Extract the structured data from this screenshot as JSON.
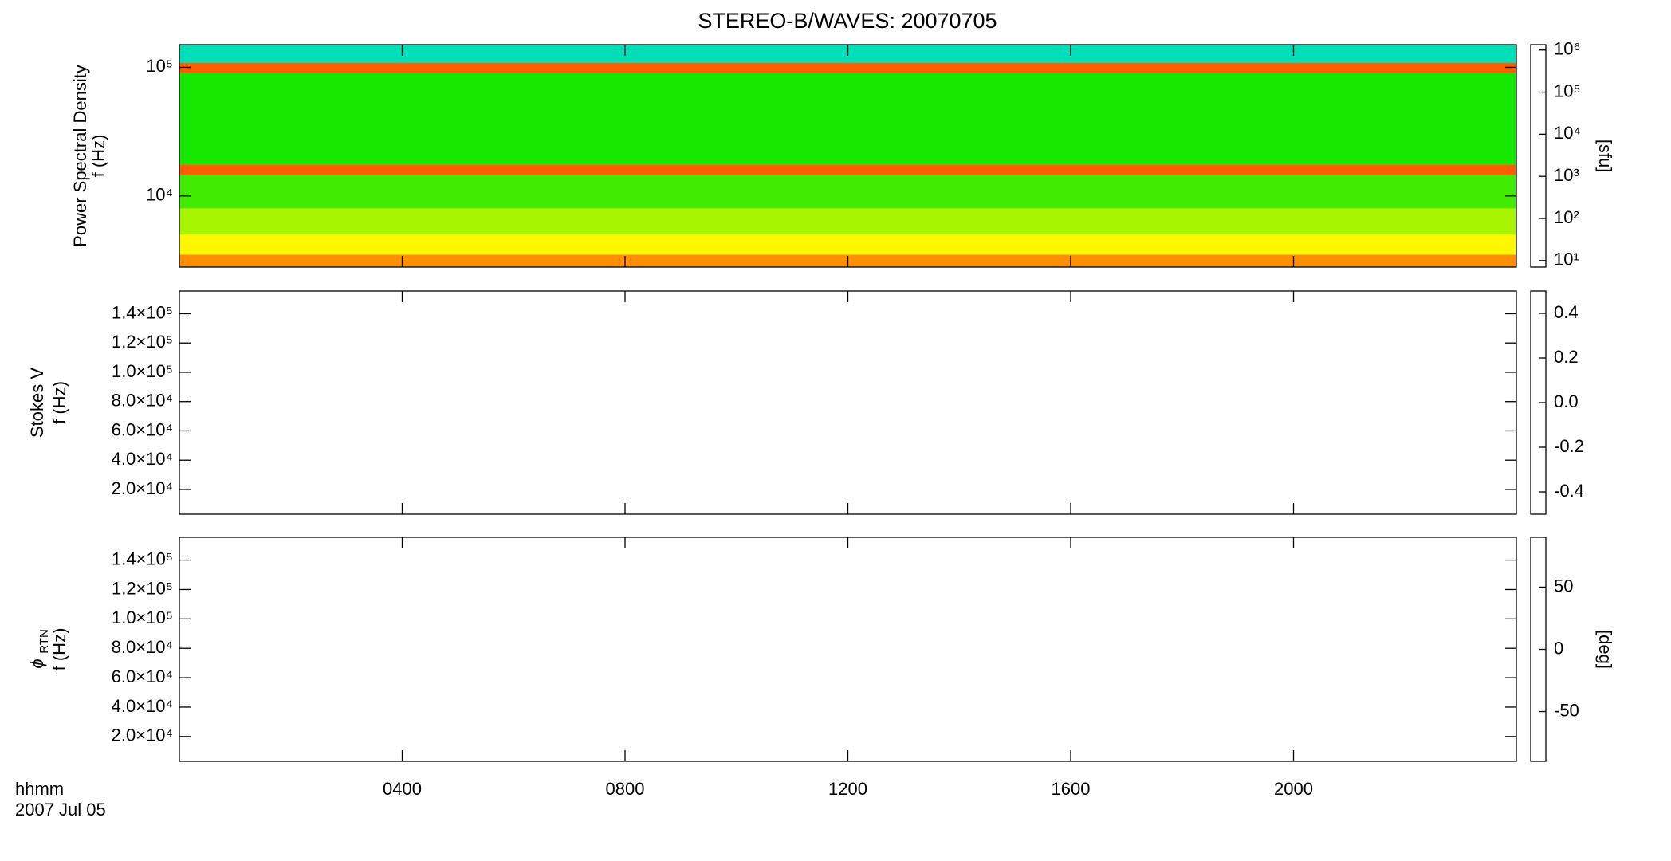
{
  "chart_data": [
    {
      "type": "spectrogram",
      "title": "STEREO-B/WAVES: 20070705",
      "ylabel": [
        "Power Spectral Density",
        "f (Hz)"
      ],
      "ylog": true,
      "ylim": [
        2800,
        150000
      ],
      "yticks": [
        {
          "value": 10000,
          "label": "10⁴"
        },
        {
          "value": 100000,
          "label": "10⁵"
        }
      ],
      "xlim": [
        0,
        24
      ],
      "zlog": true,
      "zlim": [
        7,
        1340000
      ],
      "zticks": [
        {
          "value": 10,
          "label": "10¹"
        },
        {
          "value": 100,
          "label": "10²"
        },
        {
          "value": 1000,
          "label": "10³"
        },
        {
          "value": 10000,
          "label": "10⁴"
        },
        {
          "value": 100000,
          "label": "10⁵"
        },
        {
          "value": 1000000,
          "label": "10⁶"
        }
      ],
      "zlabel": "[sfu]",
      "bands": [
        {
          "f": [
            2800,
            3500
          ],
          "value": 300000
        },
        {
          "f": [
            3500,
            5000
          ],
          "value": 100000
        },
        {
          "f": [
            5000,
            8000
          ],
          "value": 40000
        },
        {
          "f": [
            8000,
            14500
          ],
          "value": 15000
        },
        {
          "f": [
            14500,
            17500
          ],
          "value": 500000
        },
        {
          "f": [
            17500,
            90000
          ],
          "value": 10000
        },
        {
          "f": [
            90000,
            108000
          ],
          "value": 500000
        },
        {
          "f": [
            108000,
            150000
          ],
          "value": 2000
        }
      ]
    },
    {
      "type": "spectrogram",
      "ylabel": [
        "Stokes V",
        "f (Hz)"
      ],
      "ylog": false,
      "ylim": [
        3100,
        155500
      ],
      "yticks": [
        {
          "value": 20000,
          "label": "2.0×10⁴"
        },
        {
          "value": 40000,
          "label": "4.0×10⁴"
        },
        {
          "value": 60000,
          "label": "6.0×10⁴"
        },
        {
          "value": 80000,
          "label": "8.0×10⁴"
        },
        {
          "value": 100000,
          "label": "1.0×10⁵"
        },
        {
          "value": 120000,
          "label": "1.2×10⁵"
        },
        {
          "value": 140000,
          "label": "1.4×10⁵"
        }
      ],
      "xlim": [
        0,
        24
      ],
      "zlog": false,
      "zlim": [
        -0.5,
        0.5
      ],
      "zticks": [
        -0.4,
        -0.2,
        {
          "value": 0,
          "label": "0.0"
        },
        0.2,
        0.4
      ],
      "bands": []
    },
    {
      "type": "spectrogram",
      "ylabel_symbol": "ϕ",
      "ylabel_subscript": "RTN",
      "ylabel": [
        "f (Hz)"
      ],
      "ylog": false,
      "ylim": [
        3100,
        155500
      ],
      "yticks": [
        {
          "value": 20000,
          "label": "2.0×10⁴"
        },
        {
          "value": 40000,
          "label": "4.0×10⁴"
        },
        {
          "value": 60000,
          "label": "6.0×10⁴"
        },
        {
          "value": 80000,
          "label": "8.0×10⁴"
        },
        {
          "value": 100000,
          "label": "1.0×10⁵"
        },
        {
          "value": 120000,
          "label": "1.2×10⁵"
        },
        {
          "value": 140000,
          "label": "1.4×10⁵"
        }
      ],
      "xlim": [
        0,
        24
      ],
      "xticks": [
        {
          "value": 4,
          "label": "0400"
        },
        {
          "value": 8,
          "label": "0800"
        },
        {
          "value": 12,
          "label": "1200"
        },
        {
          "value": 16,
          "label": "1600"
        },
        {
          "value": 20,
          "label": "2000"
        }
      ],
      "xlabel": [
        "hhmm",
        "2007 Jul 05"
      ],
      "zlog": false,
      "zlim": [
        -90,
        90
      ],
      "zticks": [
        -50,
        0,
        50
      ],
      "zlabel": "[deg]",
      "bands": []
    }
  ]
}
